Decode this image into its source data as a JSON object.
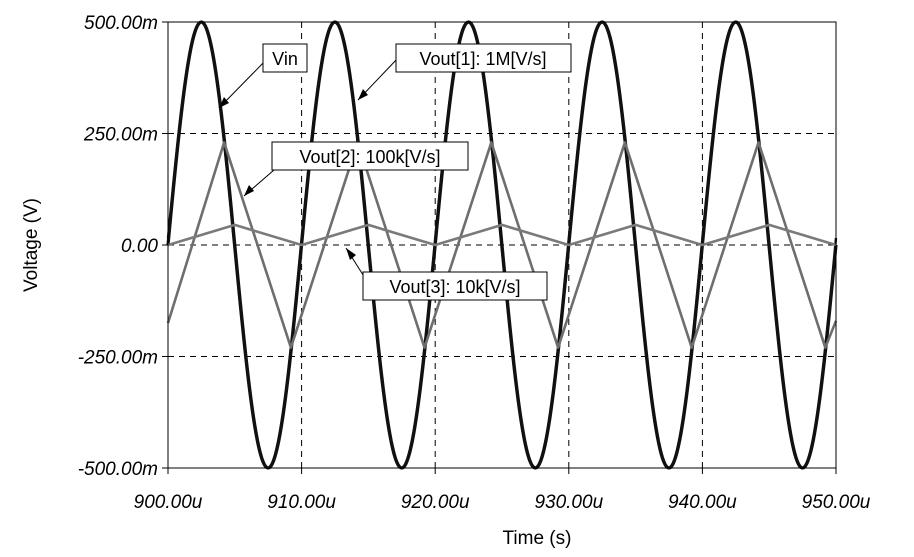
{
  "chart_data": {
    "type": "line",
    "xlabel": "Time (s)",
    "ylabel": "Voltage (V)",
    "xlim": [
      900,
      950
    ],
    "x_unit": "u",
    "ylim": [
      -0.5,
      0.5
    ],
    "x_ticks": [
      {
        "value": 900,
        "label": "900.00u"
      },
      {
        "value": 910,
        "label": "910.00u"
      },
      {
        "value": 920,
        "label": "920.00u"
      },
      {
        "value": 930,
        "label": "930.00u"
      },
      {
        "value": 940,
        "label": "940.00u"
      },
      {
        "value": 950,
        "label": "950.00u"
      }
    ],
    "y_ticks": [
      {
        "value": 0.5,
        "label": "500.00m"
      },
      {
        "value": 0.25,
        "label": "250.00m"
      },
      {
        "value": 0,
        "label": "0.00"
      },
      {
        "value": -0.25,
        "label": "-250.00m"
      },
      {
        "value": -0.5,
        "label": "-500.00m"
      }
    ],
    "grid": true,
    "series": [
      {
        "name": "Vin",
        "color": "#111111",
        "x": [
          900,
          902.5,
          907.5,
          912.5,
          917.5,
          922.5,
          927.5,
          932.5,
          937.5,
          942.5,
          947.5,
          950
        ],
        "y": [
          0,
          0.5,
          -0.5,
          0.5,
          -0.5,
          0.5,
          -0.5,
          0.5,
          -0.5,
          0.5,
          -0.5,
          0
        ]
      },
      {
        "name": "Vout[1]: 1M[V/s]",
        "color": "#111111",
        "x": [
          900,
          902.5,
          907.5,
          912.5,
          917.5,
          922.5,
          927.5,
          932.5,
          937.5,
          942.5,
          947.5,
          950
        ],
        "y": [
          -0.05,
          0.5,
          -0.5,
          0.5,
          -0.5,
          0.5,
          -0.5,
          0.5,
          -0.5,
          0.5,
          -0.5,
          0.05
        ]
      },
      {
        "name": "Vout[2]: 100k[V/s]",
        "color": "#6e6e6e",
        "x": [
          900,
          904.2,
          909.2,
          914.2,
          919.2,
          924.2,
          929.2,
          934.2,
          939.2,
          944.2,
          949.2,
          950
        ],
        "y": [
          -0.175,
          0.23,
          -0.23,
          0.23,
          -0.23,
          0.23,
          -0.23,
          0.23,
          -0.23,
          0.23,
          -0.23,
          -0.17
        ]
      },
      {
        "name": "Vout[3]: 10k[V/s]",
        "color": "#7a7a7a",
        "x": [
          900,
          905,
          910,
          915,
          920,
          925,
          930,
          935,
          940,
          945,
          950
        ],
        "y": [
          0,
          0.045,
          0,
          0.045,
          0,
          0.045,
          0,
          0.045,
          0,
          0.045,
          0
        ]
      }
    ],
    "annotations": [
      {
        "text": "Vin",
        "series": "Vin"
      },
      {
        "text": "Vout[1]: 1M[V/s]",
        "series": "Vout[1]: 1M[V/s]"
      },
      {
        "text": "Vout[2]: 100k[V/s]",
        "series": "Vout[2]: 100k[V/s]"
      },
      {
        "text": "Vout[3]: 10k[V/s]",
        "series": "Vout[3]: 10k[V/s]"
      }
    ]
  }
}
